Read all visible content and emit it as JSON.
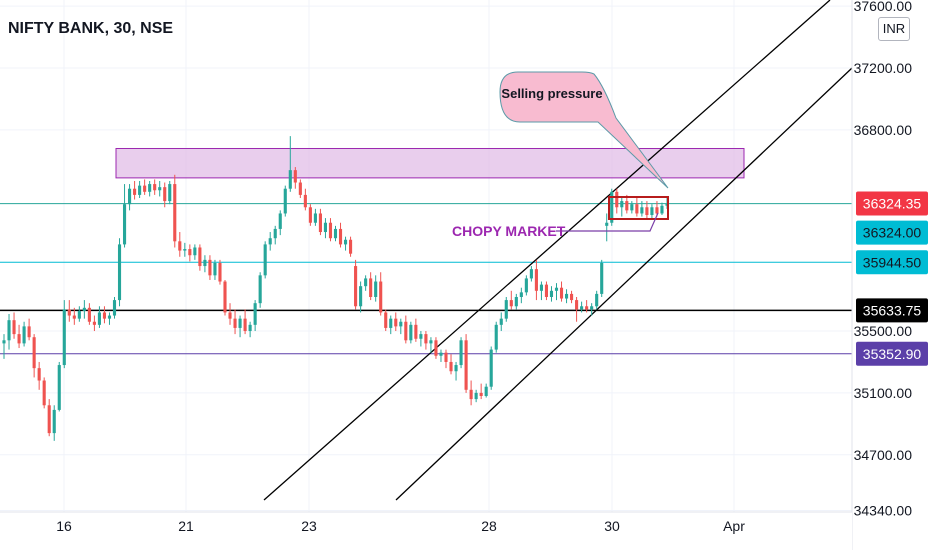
{
  "header": {
    "title": "NIFTY BANK, 30, NSE",
    "currency": "INR"
  },
  "chart_data": {
    "type": "candlestick",
    "title": "NIFTY BANK, 30, NSE",
    "ylim": [
      34330,
      37640
    ],
    "y_ticks": [
      {
        "value": 34340,
        "label": "34340.00"
      },
      {
        "value": 34700,
        "label": "34700.00"
      },
      {
        "value": 35100,
        "label": "35100.00"
      },
      {
        "value": 35500,
        "label": "35500.00"
      },
      {
        "value": 36800,
        "label": "36800.00"
      },
      {
        "value": 37200,
        "label": "37200.00"
      },
      {
        "value": 37600,
        "label": "37600.00"
      }
    ],
    "x_labels": [
      {
        "date": "2022-03-16",
        "label": "16"
      },
      {
        "date": "2022-03-21",
        "label": "21"
      },
      {
        "date": "2022-03-23",
        "label": "23"
      },
      {
        "date": "2022-03-28",
        "label": "28"
      },
      {
        "date": "2022-03-30",
        "label": "30"
      },
      {
        "date": "2022-04-01",
        "label": "Apr"
      }
    ],
    "price_badges": [
      {
        "value": 36324.35,
        "label": "36324.35",
        "color": "#f23645",
        "text_color": "#ffffff"
      },
      {
        "value": 36324.0,
        "label": "36324.00",
        "color": "#00bcd4",
        "text_color": "#131722"
      },
      {
        "value": 35944.5,
        "label": "35944.50",
        "color": "#00bcd4",
        "text_color": "#131722"
      },
      {
        "value": 35633.75,
        "label": "35633.75",
        "color": "#000000",
        "text_color": "#ffffff"
      },
      {
        "value": 35352.9,
        "label": "35352.90",
        "color": "#5b3fa8",
        "text_color": "#ffffff"
      }
    ],
    "horizontal_lines": [
      {
        "value": 36324.0,
        "color": "#26a69a"
      },
      {
        "value": 35944.5,
        "color": "#00bcd4"
      },
      {
        "value": 35633.75,
        "color": "#000000"
      },
      {
        "value": 35352.9,
        "color": "#5b3fa8"
      }
    ],
    "zone": {
      "from": 36490,
      "to": 36680,
      "color": "#e1bee7",
      "border": "#9c27b0"
    },
    "annotations": {
      "callout": "Selling pressure",
      "label": "CHOPY MARKET"
    },
    "colors": {
      "up": "#26a69a",
      "down": "#ef5350"
    },
    "candles": [
      [
        35420,
        35480,
        35320,
        35440
      ],
      [
        35440,
        35610,
        35380,
        35570
      ],
      [
        35570,
        35620,
        35450,
        35480
      ],
      [
        35480,
        35540,
        35390,
        35420
      ],
      [
        35420,
        35560,
        35400,
        35530
      ],
      [
        35530,
        35580,
        35440,
        35460
      ],
      [
        35460,
        35480,
        35200,
        35260
      ],
      [
        35260,
        35300,
        35120,
        35180
      ],
      [
        35180,
        35200,
        35000,
        35020
      ],
      [
        35020,
        35060,
        34820,
        34840
      ],
      [
        34840,
        35020,
        34790,
        34990
      ],
      [
        34990,
        35300,
        34980,
        35280
      ],
      [
        35280,
        35700,
        35260,
        35640
      ],
      [
        35640,
        35700,
        35560,
        35600
      ],
      [
        35600,
        35650,
        35540,
        35580
      ],
      [
        35580,
        35660,
        35560,
        35630
      ],
      [
        35630,
        35700,
        35580,
        35650
      ],
      [
        35650,
        35680,
        35540,
        35560
      ],
      [
        35560,
        35600,
        35500,
        35540
      ],
      [
        35540,
        35660,
        35520,
        35620
      ],
      [
        35620,
        35660,
        35550,
        35580
      ],
      [
        35580,
        35620,
        35540,
        35600
      ],
      [
        35600,
        35720,
        35580,
        35700
      ],
      [
        35700,
        36100,
        35660,
        36060
      ],
      [
        36060,
        36450,
        36040,
        36320
      ],
      [
        36320,
        36450,
        36280,
        36420
      ],
      [
        36420,
        36470,
        36350,
        36380
      ],
      [
        36380,
        36470,
        36360,
        36440
      ],
      [
        36440,
        36480,
        36380,
        36400
      ],
      [
        36400,
        36470,
        36370,
        36450
      ],
      [
        36450,
        36480,
        36380,
        36410
      ],
      [
        36410,
        36470,
        36370,
        36430
      ],
      [
        36430,
        36460,
        36300,
        36340
      ],
      [
        36340,
        36470,
        36320,
        36450
      ],
      [
        36450,
        36510,
        36040,
        36080
      ],
      [
        36080,
        36140,
        35980,
        36020
      ],
      [
        36020,
        36070,
        35980,
        36030
      ],
      [
        36030,
        36060,
        35950,
        35990
      ],
      [
        35990,
        36060,
        35960,
        36040
      ],
      [
        36040,
        36060,
        35890,
        35920
      ],
      [
        35920,
        35990,
        35880,
        35960
      ],
      [
        35960,
        35990,
        35830,
        35860
      ],
      [
        35860,
        35960,
        35830,
        35940
      ],
      [
        35940,
        35960,
        35800,
        35820
      ],
      [
        35820,
        35830,
        35600,
        35620
      ],
      [
        35620,
        35680,
        35540,
        35580
      ],
      [
        35580,
        35640,
        35480,
        35520
      ],
      [
        35520,
        35600,
        35460,
        35580
      ],
      [
        35580,
        35640,
        35480,
        35500
      ],
      [
        35500,
        35560,
        35460,
        35540
      ],
      [
        35540,
        35700,
        35500,
        35680
      ],
      [
        35680,
        35880,
        35650,
        35860
      ],
      [
        35860,
        36080,
        35840,
        36060
      ],
      [
        36060,
        36140,
        36020,
        36100
      ],
      [
        36100,
        36180,
        36060,
        36160
      ],
      [
        36160,
        36280,
        36120,
        36260
      ],
      [
        36260,
        36440,
        36240,
        36420
      ],
      [
        36420,
        36760,
        36400,
        36540
      ],
      [
        36540,
        36560,
        36420,
        36460
      ],
      [
        36460,
        36480,
        36360,
        36380
      ],
      [
        36380,
        36420,
        36280,
        36300
      ],
      [
        36300,
        36320,
        36180,
        36200
      ],
      [
        36200,
        36290,
        36180,
        36260
      ],
      [
        36260,
        36290,
        36120,
        36140
      ],
      [
        36140,
        36230,
        36100,
        36200
      ],
      [
        36200,
        36230,
        36080,
        36100
      ],
      [
        36100,
        36180,
        36080,
        36160
      ],
      [
        36160,
        36200,
        36040,
        36060
      ],
      [
        36060,
        36110,
        36020,
        36090
      ],
      [
        36090,
        36110,
        35980,
        36000
      ],
      [
        35920,
        35960,
        35640,
        35660
      ],
      [
        35660,
        35820,
        35620,
        35790
      ],
      [
        35790,
        35860,
        35760,
        35840
      ],
      [
        35840,
        35880,
        35700,
        35720
      ],
      [
        35720,
        35860,
        35690,
        35820
      ],
      [
        35820,
        35880,
        35600,
        35620
      ],
      [
        35620,
        35640,
        35500,
        35520
      ],
      [
        35520,
        35600,
        35480,
        35580
      ],
      [
        35580,
        35620,
        35500,
        35530
      ],
      [
        35530,
        35580,
        35480,
        35560
      ],
      [
        35560,
        35600,
        35420,
        35440
      ],
      [
        35440,
        35560,
        35420,
        35540
      ],
      [
        35540,
        35580,
        35430,
        35450
      ],
      [
        35450,
        35500,
        35400,
        35480
      ],
      [
        35480,
        35500,
        35380,
        35420
      ],
      [
        35420,
        35460,
        35360,
        35440
      ],
      [
        35440,
        35460,
        35320,
        35340
      ],
      [
        35340,
        35380,
        35300,
        35360
      ],
      [
        35360,
        35380,
        35260,
        35300
      ],
      [
        35300,
        35350,
        35220,
        35240
      ],
      [
        35240,
        35300,
        35180,
        35280
      ],
      [
        35280,
        35460,
        35260,
        35440
      ],
      [
        35440,
        35480,
        35100,
        35120
      ],
      [
        35120,
        35180,
        35020,
        35060
      ],
      [
        35060,
        35120,
        35040,
        35100
      ],
      [
        35100,
        35160,
        35060,
        35080
      ],
      [
        35080,
        35160,
        35070,
        35140
      ],
      [
        35140,
        35400,
        35120,
        35380
      ],
      [
        35380,
        35560,
        35360,
        35540
      ],
      [
        35540,
        35620,
        35500,
        35580
      ],
      [
        35580,
        35720,
        35560,
        35700
      ],
      [
        35700,
        35760,
        35640,
        35660
      ],
      [
        35660,
        35740,
        35640,
        35720
      ],
      [
        35720,
        35780,
        35680,
        35750
      ],
      [
        35750,
        35860,
        35730,
        35840
      ],
      [
        35840,
        35920,
        35820,
        35900
      ],
      [
        35900,
        35960,
        35700,
        35760
      ],
      [
        35760,
        35820,
        35700,
        35800
      ],
      [
        35800,
        35820,
        35700,
        35720
      ],
      [
        35720,
        35790,
        35690,
        35760
      ],
      [
        35760,
        35810,
        35700,
        35780
      ],
      [
        35780,
        35820,
        35690,
        35710
      ],
      [
        35710,
        35770,
        35680,
        35740
      ],
      [
        35740,
        35760,
        35680,
        35700
      ],
      [
        35700,
        35720,
        35560,
        35640
      ],
      [
        35640,
        35690,
        35620,
        35660
      ],
      [
        35660,
        35700,
        35620,
        35640
      ],
      [
        35640,
        35680,
        35600,
        35660
      ],
      [
        35660,
        35760,
        35640,
        35740
      ],
      [
        35740,
        35960,
        35720,
        35940
      ],
      [
        36180,
        36260,
        36080,
        36200
      ],
      [
        36200,
        36420,
        36180,
        36400
      ],
      [
        36400,
        36420,
        36260,
        36300
      ],
      [
        36300,
        36360,
        36240,
        36340
      ],
      [
        36340,
        36380,
        36260,
        36280
      ],
      [
        36280,
        36340,
        36260,
        36320
      ],
      [
        36320,
        36360,
        36240,
        36260
      ],
      [
        36260,
        36340,
        36240,
        36300
      ],
      [
        36300,
        36340,
        36230,
        36250
      ],
      [
        36250,
        36320,
        36220,
        36300
      ],
      [
        36300,
        36340,
        36240,
        36260
      ],
      [
        36260,
        36330,
        36250,
        36310
      ],
      [
        36310,
        36360,
        36290,
        36324
      ]
    ]
  }
}
